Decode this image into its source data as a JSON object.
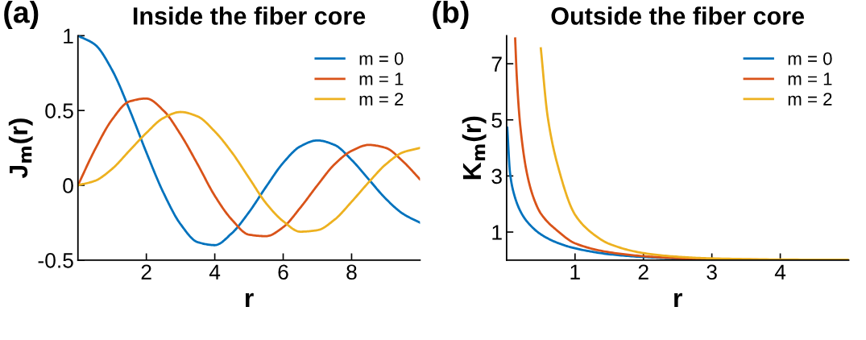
{
  "chart_data": [
    {
      "type": "line",
      "title": "Inside the fiber core",
      "xlabel": "r",
      "ylabel": "J$_{m}$(r)",
      "annotations": [
        "(a)"
      ],
      "x": [
        0,
        0.5,
        1,
        1.5,
        2,
        2.5,
        3,
        3.5,
        4,
        4.5,
        5,
        5.5,
        6,
        6.5,
        7,
        7.5,
        8,
        8.5,
        9,
        9.5,
        10
      ],
      "series": [
        {
          "name": "m = 0",
          "color": "#0072bd",
          "values": [
            1,
            0.94,
            0.77,
            0.51,
            0.22,
            -0.05,
            -0.26,
            -0.38,
            -0.4,
            -0.32,
            -0.18,
            -0.01,
            0.15,
            0.26,
            0.3,
            0.27,
            0.17,
            0.04,
            -0.09,
            -0.19,
            -0.25
          ]
        },
        {
          "name": "m = 1",
          "color": "#d95319",
          "values": [
            0,
            0.24,
            0.44,
            0.56,
            0.58,
            0.5,
            0.34,
            0.14,
            -0.07,
            -0.23,
            -0.33,
            -0.34,
            -0.28,
            -0.15,
            0.0,
            0.14,
            0.23,
            0.27,
            0.25,
            0.16,
            0.04
          ]
        },
        {
          "name": "m = 2",
          "color": "#edb120",
          "values": [
            0,
            0.03,
            0.11,
            0.23,
            0.35,
            0.45,
            0.49,
            0.46,
            0.36,
            0.22,
            0.05,
            -0.12,
            -0.24,
            -0.31,
            -0.3,
            -0.23,
            -0.11,
            0.02,
            0.14,
            0.22,
            0.25
          ]
        }
      ],
      "xlim": [
        0,
        10
      ],
      "ylim": [
        -0.5,
        1
      ],
      "xticks": [
        2,
        4,
        6,
        8
      ],
      "yticks": [
        -0.5,
        0,
        0.5,
        1
      ],
      "legend": "top right",
      "grid": false
    },
    {
      "type": "line",
      "title": "Outside the fiber core",
      "xlabel": "r",
      "ylabel": "K$_{m}$(r)",
      "annotations": [
        "(b)"
      ],
      "series": [
        {
          "name": "m = 0",
          "color": "#0072bd",
          "x": [
            0.01,
            0.05,
            0.1,
            0.2,
            0.3,
            0.5,
            0.75,
            1,
            1.5,
            2,
            2.5,
            3
          ],
          "values": [
            4.72,
            3.11,
            2.43,
            1.75,
            1.37,
            0.92,
            0.61,
            0.42,
            0.21,
            0.11,
            0.06,
            0.03
          ]
        },
        {
          "name": "m = 1",
          "color": "#d95319",
          "x": [
            0.125,
            0.15,
            0.2,
            0.3,
            0.4,
            0.5,
            0.75,
            1,
            1.5,
            2,
            2.5,
            3,
            4,
            5
          ],
          "values": [
            7.9,
            6.48,
            4.78,
            3.06,
            2.18,
            1.66,
            1.03,
            0.6,
            0.28,
            0.14,
            0.07,
            0.04,
            0.01,
            0.0
          ]
        },
        {
          "name": "m = 2",
          "color": "#edb120",
          "x": [
            0.5,
            0.6,
            0.75,
            1,
            1.25,
            1.5,
            2,
            2.5,
            3,
            4,
            5
          ],
          "values": [
            7.55,
            5.12,
            3.35,
            1.62,
            0.96,
            0.58,
            0.25,
            0.12,
            0.06,
            0.02,
            0.01
          ]
        }
      ],
      "xlim": [
        0,
        5
      ],
      "ylim": [
        0,
        8
      ],
      "xticks": [
        1,
        2,
        3,
        4
      ],
      "yticks": [
        1,
        3,
        5,
        7
      ],
      "legend": "top right",
      "grid": false
    }
  ]
}
